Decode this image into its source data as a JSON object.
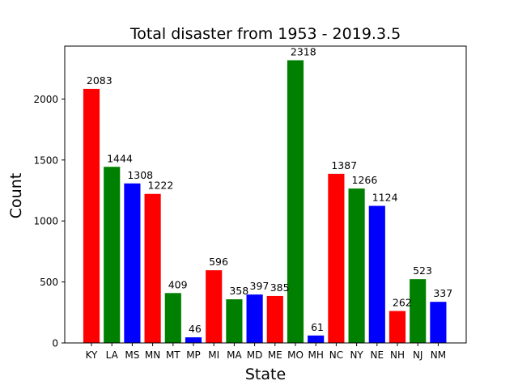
{
  "chart_data": {
    "type": "bar",
    "title": "Total disaster from 1953 - 2019.3.5",
    "xlabel": "State",
    "ylabel": "Count",
    "categories": [
      "KY",
      "LA",
      "MS",
      "MN",
      "MT",
      "MP",
      "MI",
      "MA",
      "MD",
      "ME",
      "MO",
      "MH",
      "NC",
      "NY",
      "NE",
      "NH",
      "NJ",
      "NM"
    ],
    "values": [
      2083,
      1444,
      1308,
      1222,
      409,
      46,
      596,
      358,
      397,
      385,
      2318,
      61,
      1387,
      1266,
      1124,
      262,
      523,
      337
    ],
    "bar_colors": [
      "#ff0000",
      "#008000",
      "#0000ff",
      "#ff0000",
      "#008000",
      "#0000ff",
      "#ff0000",
      "#008000",
      "#0000ff",
      "#ff0000",
      "#008000",
      "#0000ff",
      "#ff0000",
      "#008000",
      "#0000ff",
      "#ff0000",
      "#008000",
      "#0000ff"
    ],
    "ylim": [
      0,
      2433.9
    ],
    "yticks": [
      0,
      500,
      1000,
      1500,
      2000
    ],
    "grid": false,
    "legend": "none"
  }
}
